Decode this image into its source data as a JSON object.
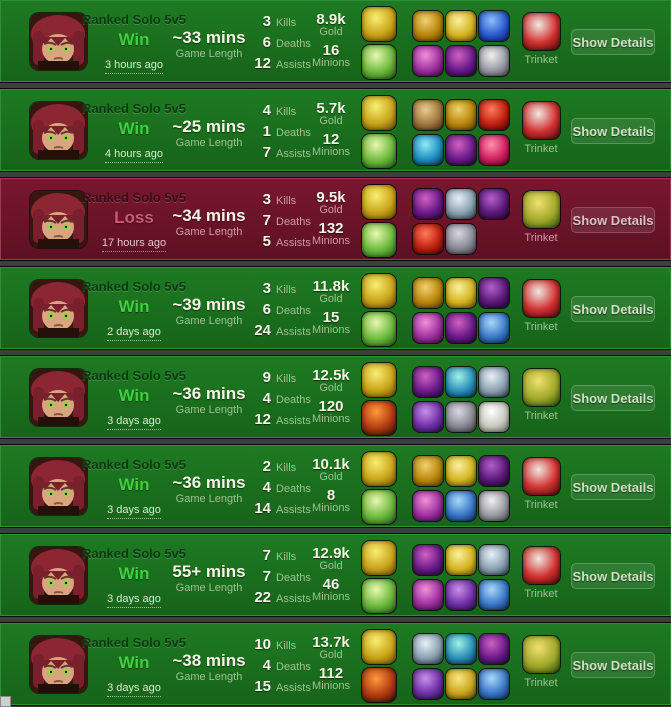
{
  "labels": {
    "win": "Win",
    "loss": "Loss",
    "kills": "Kills",
    "deaths": "Deaths",
    "assists": "Assists",
    "gold": "Gold",
    "minions": "Minions",
    "game_length": "Game Length",
    "trinket": "Trinket",
    "show_details": "Show Details"
  },
  "colors": {
    "win_row_bg": "#1b6f1e",
    "loss_row_bg": "#6e1428",
    "win_text": "#3fd03f",
    "loss_text": "#cb5a6e",
    "value_text": "#f7f5e6",
    "label_text": "#9fc193"
  },
  "icon_colors": {
    "flash": [
      "#f8ee72",
      "#caa41a",
      "#6a4d06"
    ],
    "heal": [
      "#e8f8b0",
      "#6ab83a",
      "#1d5a14"
    ],
    "ignite": [
      "#ff9a3a",
      "#b03a10",
      "#2a0d05"
    ],
    "gold-boots": [
      "#f0d070",
      "#b8860b",
      "#5a3d08"
    ],
    "golden-orb": [
      "#faf0a0",
      "#d4b420",
      "#6a5208"
    ],
    "blue-vial": [
      "#8ac0f8",
      "#2a5ad0",
      "#0a1c60"
    ],
    "purple-eye": [
      "#f090d8",
      "#a030a0",
      "#3a0a40"
    ],
    "purple-tome": [
      "#d060c0",
      "#6a1a8a",
      "#200530"
    ],
    "grey-cloak": [
      "#f0f0f0",
      "#9a9aa4",
      "#44444e"
    ],
    "tan-cube": [
      "#e8cc90",
      "#a07840",
      "#4a3010"
    ],
    "red-flask": [
      "#ff7a5a",
      "#c02010",
      "#400505"
    ],
    "blue-eye": [
      "#90e8f8",
      "#2090c0",
      "#053050"
    ],
    "pink-gem": [
      "#ff90b0",
      "#d02060",
      "#500518"
    ],
    "grey-horn": [
      "#e8f0f8",
      "#8aa0b0",
      "#2a3a4a"
    ],
    "grey-medallion": [
      "#d8d8e0",
      "#8a8a96",
      "#3a3a44"
    ],
    "teal-staff": [
      "#a0f0e8",
      "#2a90b8",
      "#0a3050"
    ],
    "purple-scepter": [
      "#c890e8",
      "#7030a8",
      "#260a40"
    ],
    "white-armor": [
      "#ffffff",
      "#c8c8be",
      "#6a6a5e"
    ],
    "dark-purple-blade": [
      "#b060c8",
      "#5a1878",
      "#1a0528"
    ],
    "gold-claw": [
      "#f8e880",
      "#caa420",
      "#5a4408"
    ],
    "blue-shark": [
      "#a8d8f8",
      "#3a78c8",
      "#0a2a5a"
    ],
    "red-trinket": [
      "#f0e8e0",
      "#d03030",
      "#4a0808"
    ],
    "yellow-trinket": [
      "#f0e070",
      "#a0a828",
      "#2a4a10"
    ]
  },
  "rows": [
    {
      "queue": "Ranked Solo 5v5",
      "result": "Win",
      "ago": "3 hours ago",
      "length": "~33 mins",
      "kills": "3",
      "deaths": "6",
      "assists": "12",
      "gold": "8.9k",
      "minions": "16",
      "spells": [
        "flash",
        "heal"
      ],
      "items": [
        "gold-boots",
        "golden-orb",
        "blue-vial",
        "purple-eye",
        "purple-tome",
        "grey-cloak"
      ],
      "trinket": "red-trinket"
    },
    {
      "queue": "Ranked Solo 5v5",
      "result": "Win",
      "ago": "4 hours ago",
      "length": "~25 mins",
      "kills": "4",
      "deaths": "1",
      "assists": "7",
      "gold": "5.7k",
      "minions": "12",
      "spells": [
        "flash",
        "heal"
      ],
      "items": [
        "tan-cube",
        "gold-boots",
        "red-flask",
        "blue-eye",
        "purple-tome",
        "pink-gem"
      ],
      "trinket": "red-trinket"
    },
    {
      "queue": "Ranked Solo 5v5",
      "result": "Loss",
      "ago": "17 hours ago",
      "length": "~34 mins",
      "kills": "3",
      "deaths": "7",
      "assists": "5",
      "gold": "9.5k",
      "minions": "132",
      "spells": [
        "flash",
        "heal"
      ],
      "items": [
        "purple-tome",
        "grey-horn",
        "dark-purple-blade",
        "red-flask",
        "grey-medallion",
        null
      ],
      "trinket": "yellow-trinket"
    },
    {
      "queue": "Ranked Solo 5v5",
      "result": "Win",
      "ago": "2 days ago",
      "length": "~39 mins",
      "kills": "3",
      "deaths": "6",
      "assists": "24",
      "gold": "11.8k",
      "minions": "15",
      "spells": [
        "flash",
        "heal"
      ],
      "items": [
        "gold-boots",
        "golden-orb",
        "dark-purple-blade",
        "purple-eye",
        "purple-tome",
        "blue-shark"
      ],
      "trinket": "red-trinket"
    },
    {
      "queue": "Ranked Solo 5v5",
      "result": "Win",
      "ago": "3 days ago",
      "length": "~36 mins",
      "kills": "9",
      "deaths": "4",
      "assists": "12",
      "gold": "12.5k",
      "minions": "120",
      "spells": [
        "flash",
        "ignite"
      ],
      "items": [
        "purple-tome",
        "teal-staff",
        "grey-horn",
        "purple-scepter",
        "grey-medallion",
        "white-armor"
      ],
      "trinket": "yellow-trinket"
    },
    {
      "queue": "Ranked Solo 5v5",
      "result": "Win",
      "ago": "3 days ago",
      "length": "~36 mins",
      "kills": "2",
      "deaths": "4",
      "assists": "14",
      "gold": "10.1k",
      "minions": "8",
      "spells": [
        "flash",
        "heal"
      ],
      "items": [
        "gold-boots",
        "golden-orb",
        "dark-purple-blade",
        "purple-eye",
        "blue-shark",
        "grey-cloak"
      ],
      "trinket": "red-trinket"
    },
    {
      "queue": "Ranked Solo 5v5",
      "result": "Win",
      "ago": "3 days ago",
      "length": "55+ mins",
      "kills": "7",
      "deaths": "7",
      "assists": "22",
      "gold": "12.9k",
      "minions": "46",
      "spells": [
        "flash",
        "heal"
      ],
      "items": [
        "purple-tome",
        "golden-orb",
        "grey-horn",
        "purple-eye",
        "purple-scepter",
        "blue-shark"
      ],
      "trinket": "red-trinket"
    },
    {
      "queue": "Ranked Solo 5v5",
      "result": "Win",
      "ago": "3 days ago",
      "length": "~38 mins",
      "kills": "10",
      "deaths": "4",
      "assists": "15",
      "gold": "13.7k",
      "minions": "112",
      "spells": [
        "flash",
        "ignite"
      ],
      "items": [
        "grey-horn",
        "teal-staff",
        "purple-tome",
        "purple-scepter",
        "gold-claw",
        "blue-shark"
      ],
      "trinket": "yellow-trinket"
    }
  ]
}
